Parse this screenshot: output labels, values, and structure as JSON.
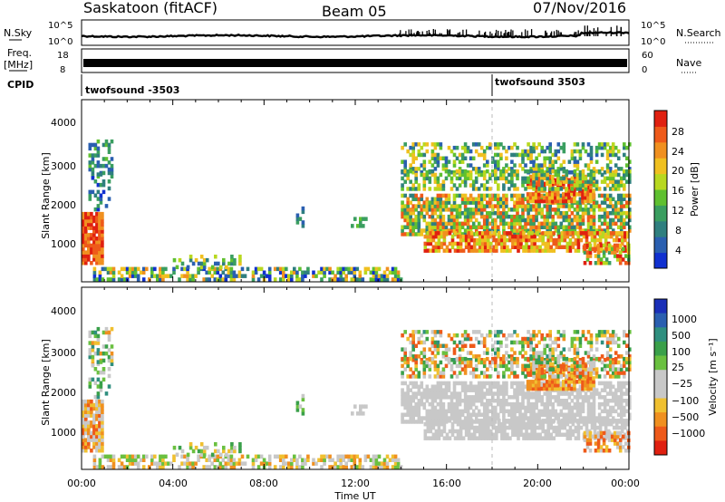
{
  "chart_data": {
    "type": "heatmap",
    "header": {
      "title": "Saskatoon (fitACF)",
      "beam": "Beam 05",
      "date": "07/Nov/2016"
    },
    "top_panels": {
      "nsky_label": "N.Sky",
      "nsearch_label": "N.Search",
      "nsky_ticks": [
        "10^5",
        "10^0"
      ],
      "nsearch_ticks": [
        "10^5",
        "10^0"
      ],
      "freq_label_1": "Freq.",
      "freq_label_2": "[MHz]",
      "freq_ticks": [
        "18",
        "8"
      ],
      "nave_label": "Nave",
      "nave_ticks": [
        "60",
        "0"
      ],
      "cpid_label": "CPID",
      "cpid_segments": [
        {
          "name": "twofsound -3503",
          "start_hour": 0
        },
        {
          "name": "twofsound 3503",
          "start_hour": 18
        }
      ]
    },
    "x_axis": {
      "label": "Time UT",
      "ticks": [
        "00:00",
        "04:00",
        "08:00",
        "12:00",
        "16:00",
        "20:00",
        "00:00"
      ],
      "range_hours": [
        0,
        24
      ]
    },
    "panels": [
      {
        "name": "power",
        "ylabel": "Slant Range [km]",
        "y_ticks": [
          1000,
          2000,
          3000,
          4000
        ],
        "ylim": [
          180,
          4600
        ],
        "colorbar_label": "Power [dB]",
        "colorbar_ticks": [
          "28",
          "24",
          "20",
          "16",
          "12",
          "8",
          "4"
        ],
        "colors": [
          "#1030d0",
          "#2a5fb0",
          "#2f7f7f",
          "#3a9e60",
          "#5fc030",
          "#b8d820",
          "#f0c020",
          "#f09020",
          "#ee5a1a",
          "#e02010"
        ]
      },
      {
        "name": "velocity",
        "ylabel": "Slant Range [km]",
        "y_ticks": [
          1000,
          2000,
          3000,
          4000
        ],
        "ylim": [
          180,
          4600
        ],
        "colorbar_label": "Velocity [m s⁻¹]",
        "colorbar_ticks": [
          "1000",
          "500",
          "100",
          "25",
          "−25",
          "−100",
          "−500",
          "−1000"
        ],
        "colors": [
          "#1a2fb8",
          "#2a5fb0",
          "#2f8f7f",
          "#3aa04a",
          "#6ac040",
          "#c8c8c8",
          "#c8c8c8",
          "#f0c030",
          "#f09020",
          "#ee5a1a",
          "#e02010"
        ]
      }
    ]
  }
}
